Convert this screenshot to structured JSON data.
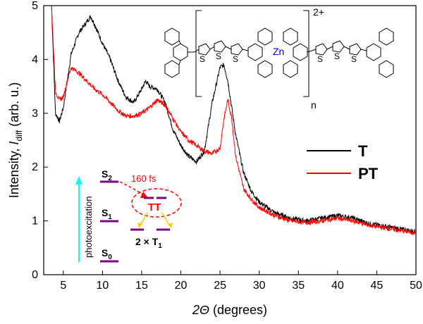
{
  "chart_data": {
    "type": "line",
    "xlabel": "2Θ (degrees)",
    "ylabel": "Intensity, I_diff (arb. u.)",
    "ylabel_prefix": "Intensity, ",
    "ylabel_italic": "I",
    "ylabel_sub": "diff",
    "ylabel_suffix": " (arb. u.)",
    "xlabel_italic": "2Θ",
    "xlabel_suffix": " (degrees)",
    "xlim": [
      2.5,
      50
    ],
    "ylim": [
      0,
      5
    ],
    "xticks": [
      5,
      10,
      15,
      20,
      25,
      30,
      35,
      40,
      45,
      50
    ],
    "yticks": [
      0,
      1,
      2,
      3,
      4,
      5
    ],
    "legend_position": "right",
    "series": [
      {
        "name": "T",
        "color": "#000000",
        "x": [
          3.5,
          4.0,
          4.5,
          5.0,
          5.5,
          6.0,
          7.0,
          8.0,
          8.5,
          9.0,
          10.0,
          11.0,
          12.0,
          13.0,
          14.0,
          15.0,
          15.5,
          16.0,
          17.0,
          18.0,
          19.0,
          20.0,
          21.0,
          22.0,
          23.0,
          24.0,
          25.0,
          25.5,
          26.0,
          27.0,
          28.0,
          29.0,
          30.0,
          32.0,
          34.0,
          36.0,
          38.0,
          40.0,
          42.0,
          44.0,
          46.0,
          48.0,
          50.0
        ],
        "y": [
          5.0,
          3.0,
          2.85,
          3.1,
          3.6,
          4.1,
          4.5,
          4.7,
          4.8,
          4.65,
          4.3,
          4.0,
          3.6,
          3.3,
          3.2,
          3.45,
          3.6,
          3.5,
          3.45,
          3.2,
          2.7,
          2.4,
          2.2,
          2.1,
          2.3,
          3.2,
          3.85,
          3.9,
          3.6,
          2.6,
          1.9,
          1.55,
          1.35,
          1.15,
          1.05,
          1.0,
          1.05,
          1.1,
          1.05,
          0.95,
          0.9,
          0.85,
          0.8
        ]
      },
      {
        "name": "PT",
        "color": "#ff0000",
        "x": [
          3.5,
          4.0,
          4.5,
          5.0,
          5.5,
          6.0,
          7.0,
          8.0,
          9.0,
          10.0,
          11.0,
          12.0,
          13.0,
          14.0,
          15.0,
          16.0,
          17.0,
          18.0,
          19.0,
          20.0,
          21.0,
          22.0,
          23.0,
          24.0,
          25.0,
          25.5,
          26.0,
          26.5,
          27.0,
          28.0,
          29.0,
          30.0,
          32.0,
          34.0,
          36.0,
          38.0,
          40.0,
          42.0,
          44.0,
          46.0,
          48.0,
          50.0
        ],
        "y": [
          5.0,
          3.4,
          3.25,
          3.3,
          3.6,
          3.85,
          3.75,
          3.6,
          3.45,
          3.35,
          3.2,
          3.05,
          2.95,
          2.95,
          3.0,
          3.1,
          3.25,
          3.15,
          2.9,
          2.65,
          2.5,
          2.4,
          2.3,
          2.25,
          2.35,
          2.9,
          3.25,
          2.9,
          2.2,
          1.6,
          1.4,
          1.25,
          1.1,
          1.0,
          0.97,
          1.0,
          1.05,
          1.0,
          0.92,
          0.87,
          0.82,
          0.78
        ]
      }
    ]
  },
  "inset": {
    "axis_label": "photoexcitation",
    "levels": [
      {
        "main": "S",
        "sub": "2"
      },
      {
        "main": "S",
        "sub": "1"
      },
      {
        "main": "S",
        "sub": "0"
      }
    ],
    "time_label": "160 fs",
    "tt_label": "TT",
    "triplet_prefix": "2 × T",
    "triplet_sub": "1",
    "colors": {
      "level": "#800080",
      "arrow": "#00ffff",
      "dashed": "#ff0000",
      "yellow": "#ffcc00",
      "tt": "#ff0000"
    }
  },
  "structure": {
    "metal_label": "Zn",
    "charge_label": "2+",
    "repeat_label": "n",
    "sulfur_label": "S",
    "metal_color": "#0000cc"
  }
}
